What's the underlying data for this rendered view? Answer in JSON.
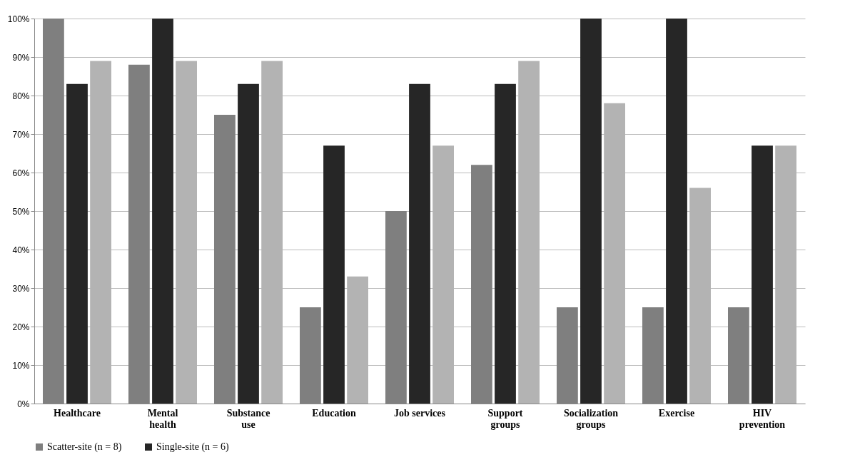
{
  "chart_data": {
    "type": "bar",
    "categories": [
      "Healthcare",
      "Mental health",
      "Substance use",
      "Education",
      "Job services",
      "Support groups",
      "Socialization groups",
      "Exercise",
      "HIV prevention"
    ],
    "series": [
      {
        "name": "Scatter-site (n = 8)",
        "color": "#7f7f7f",
        "values": [
          100,
          88,
          75,
          25,
          50,
          62,
          25,
          25,
          25
        ]
      },
      {
        "name": "Single-site (n = 6)",
        "color": "#262626",
        "values": [
          83,
          100,
          83,
          67,
          83,
          83,
          100,
          100,
          67
        ]
      },
      {
        "color": "#b3b3b3",
        "values": [
          89,
          89,
          89,
          33,
          67,
          89,
          78,
          56,
          67
        ]
      }
    ],
    "ylim": [
      0,
      100
    ],
    "yticks": [
      {
        "value": 0,
        "label": "0%"
      },
      {
        "value": 10,
        "label": "10%"
      },
      {
        "value": 20,
        "label": "20%"
      },
      {
        "value": 30,
        "label": "30%"
      },
      {
        "value": 40,
        "label": "40%"
      },
      {
        "value": 50,
        "label": "50%"
      },
      {
        "value": 60,
        "label": "60%"
      },
      {
        "value": 70,
        "label": "70%"
      },
      {
        "value": 80,
        "label": "80%"
      },
      {
        "value": 90,
        "label": "90%"
      },
      {
        "value": 100,
        "label": "100%"
      }
    ],
    "grid": "y",
    "legend": "bottom"
  }
}
